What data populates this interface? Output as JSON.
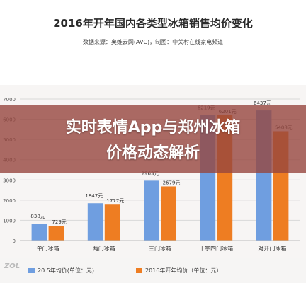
{
  "page": {
    "title": "2016年开年国内各类型冰箱销售均价变化",
    "source": "数据来源：奥维云网(AVC)，制图：中关村在线家电频道",
    "banner_line1": "实时表情App与郑州冰箱",
    "banner_line2": "价格动态解析",
    "watermark": "ZOL"
  },
  "colors": {
    "series_1": "#6f9ee0",
    "series_2": "#ee7d22",
    "banner": "#96463e",
    "grid": "#d9d9d9"
  },
  "chart_data": {
    "type": "bar",
    "title": "2016年开年国内各类型冰箱销售均价变化",
    "xlabel": "",
    "ylabel": "",
    "ylim": [
      0,
      7000
    ],
    "yticks": [
      0,
      1000,
      2000,
      3000,
      4000,
      5000,
      6000,
      7000
    ],
    "grid": true,
    "legend": "bottom",
    "categories": [
      "单门冰箱",
      "两门冰箱",
      "三门冰箱",
      "十字四门冰箱",
      "对开门冰箱"
    ],
    "series": [
      {
        "name": "20 5年均价(单位：元)",
        "values": [
          838,
          1847,
          2963,
          6219,
          6437
        ],
        "labels": [
          "838元",
          "1847元",
          "2963元",
          "6219元",
          "6437元"
        ]
      },
      {
        "name": "2016年开年均价（单位：元）",
        "values": [
          729,
          1777,
          2679,
          6201,
          5408
        ],
        "labels": [
          "729元",
          "1777元",
          "2679元",
          "6201元",
          "5408元"
        ]
      }
    ]
  }
}
